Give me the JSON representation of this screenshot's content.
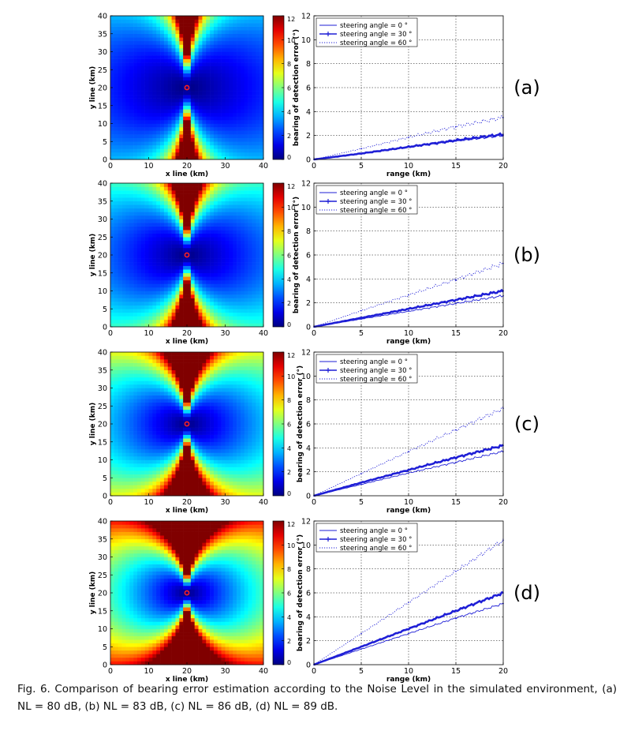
{
  "figure": {
    "caption": "Fig. 6. Comparison of bearing error estimation according to the Noise Level in the simulated environment, (a) NL = 80 dB, (b) NL = 83 dB, (c) NL = 86 dB, (d) NL = 89 dB."
  },
  "colors": {
    "series_line": "#1f1fd6",
    "source_marker": "#ff2020",
    "grid": "#000000"
  },
  "chart_data": [
    {
      "panel_label": "(a)",
      "heatmap": {
        "type": "heatmap",
        "xlabel": "x line (km)",
        "ylabel": "y line (km)",
        "xlim": [
          0,
          40
        ],
        "ylim": [
          0,
          40
        ],
        "xticks": [
          0,
          10,
          20,
          30,
          40
        ],
        "yticks": [
          0,
          5,
          10,
          15,
          20,
          25,
          30,
          35,
          40
        ],
        "source_point": [
          20,
          20
        ],
        "colorbar": {
          "label": "",
          "range": [
            0,
            12
          ],
          "ticks": [
            0,
            2,
            4,
            6,
            8,
            10,
            12
          ],
          "colormap": "jet"
        },
        "corner_level": 3.7
      },
      "line": {
        "type": "line",
        "xlabel": "range (km)",
        "ylabel": "bearing of detection error (°)",
        "xlim": [
          0,
          20
        ],
        "ylim": [
          0,
          12
        ],
        "xticks": [
          0,
          5,
          10,
          15,
          20
        ],
        "yticks": [
          0,
          2,
          4,
          6,
          8,
          10,
          12
        ],
        "grid": true,
        "legend": "top-left",
        "x": [
          0,
          5,
          10,
          15,
          20
        ],
        "series": [
          {
            "name": "steering angle = 0 °",
            "style": "solid",
            "values": [
              0,
              0.5,
              1.05,
              1.55,
              2.0
            ]
          },
          {
            "name": "steering angle = 30 °",
            "style": "solid-marker",
            "values": [
              0,
              0.5,
              1.05,
              1.6,
              2.1
            ]
          },
          {
            "name": "steering angle = 60 °",
            "style": "dotted",
            "values": [
              0,
              0.9,
              1.85,
              2.75,
              3.5
            ]
          }
        ]
      }
    },
    {
      "panel_label": "(b)",
      "heatmap": {
        "type": "heatmap",
        "xlabel": "x line (km)",
        "ylabel": "y line (km)",
        "xlim": [
          0,
          40
        ],
        "ylim": [
          0,
          40
        ],
        "xticks": [
          0,
          10,
          20,
          30,
          40
        ],
        "yticks": [
          0,
          5,
          10,
          15,
          20,
          25,
          30,
          35,
          40
        ],
        "source_point": [
          20,
          20
        ],
        "colorbar": {
          "label": "",
          "range": [
            0,
            12
          ],
          "ticks": [
            0,
            2,
            4,
            6,
            8,
            10,
            12
          ],
          "colormap": "jet"
        },
        "corner_level": 5.2
      },
      "line": {
        "type": "line",
        "xlabel": "range (km)",
        "ylabel": "bearing of detection error (°)",
        "xlim": [
          0,
          20
        ],
        "ylim": [
          0,
          12
        ],
        "xticks": [
          0,
          5,
          10,
          15,
          20
        ],
        "yticks": [
          0,
          2,
          4,
          6,
          8,
          10,
          12
        ],
        "grid": true,
        "legend": "top-left",
        "x": [
          0,
          5,
          10,
          15,
          20
        ],
        "series": [
          {
            "name": "steering angle = 0 °",
            "style": "solid",
            "values": [
              0,
              0.65,
              1.3,
              1.95,
              2.6
            ]
          },
          {
            "name": "steering angle = 30 °",
            "style": "solid-marker",
            "values": [
              0,
              0.75,
              1.5,
              2.25,
              3.0
            ]
          },
          {
            "name": "steering angle = 60 °",
            "style": "dotted",
            "values": [
              0,
              1.35,
              2.65,
              3.95,
              5.3
            ]
          }
        ]
      }
    },
    {
      "panel_label": "(c)",
      "heatmap": {
        "type": "heatmap",
        "xlabel": "x line (km)",
        "ylabel": "y line (km)",
        "xlim": [
          0,
          40
        ],
        "ylim": [
          0,
          40
        ],
        "xticks": [
          0,
          10,
          20,
          30,
          40
        ],
        "yticks": [
          0,
          5,
          10,
          15,
          20,
          25,
          30,
          35,
          40
        ],
        "source_point": [
          20,
          20
        ],
        "colorbar": {
          "label": "bearing of detection error (°)",
          "range": [
            0,
            12
          ],
          "ticks": [
            0,
            2,
            4,
            6,
            8,
            10,
            12
          ],
          "colormap": "jet"
        },
        "corner_level": 7.3
      },
      "line": {
        "type": "line",
        "xlabel": "range (km)",
        "ylabel": "",
        "xlim": [
          0,
          20
        ],
        "ylim": [
          0,
          12
        ],
        "xticks": [
          0,
          5,
          10,
          15,
          20
        ],
        "yticks": [
          0,
          2,
          4,
          6,
          8,
          10,
          12
        ],
        "grid": true,
        "legend": "top-left",
        "x": [
          0,
          5,
          10,
          15,
          20
        ],
        "series": [
          {
            "name": "steering angle = 0 °",
            "style": "solid",
            "values": [
              0,
              0.95,
              1.9,
              2.8,
              3.7
            ]
          },
          {
            "name": "steering angle = 30 °",
            "style": "solid-marker",
            "values": [
              0,
              1.1,
              2.15,
              3.2,
              4.2
            ]
          },
          {
            "name": "steering angle = 60 °",
            "style": "dotted",
            "values": [
              0,
              1.85,
              3.7,
              5.5,
              7.3
            ]
          }
        ]
      }
    },
    {
      "panel_label": "(d)",
      "heatmap": {
        "type": "heatmap",
        "xlabel": "x line (km)",
        "ylabel": "y line (km)",
        "xlim": [
          0,
          40
        ],
        "ylim": [
          0,
          40
        ],
        "xticks": [
          0,
          10,
          20,
          30,
          40
        ],
        "yticks": [
          0,
          5,
          10,
          15,
          20,
          25,
          30,
          35,
          40
        ],
        "source_point": [
          20,
          20
        ],
        "colorbar": {
          "label": "bearing of detection error (°)",
          "range": [
            0,
            12
          ],
          "ticks": [
            0,
            2,
            4,
            6,
            8,
            10,
            12
          ],
          "colormap": "jet"
        },
        "corner_level": 10.4
      },
      "line": {
        "type": "line",
        "xlabel": "range (km)",
        "ylabel": "",
        "xlim": [
          0,
          20
        ],
        "ylim": [
          0,
          12
        ],
        "xticks": [
          0,
          5,
          10,
          15,
          20
        ],
        "yticks": [
          0,
          2,
          4,
          6,
          8,
          10,
          12
        ],
        "grid": true,
        "legend": "top-left",
        "x": [
          0,
          5,
          10,
          15,
          20
        ],
        "series": [
          {
            "name": "steering angle = 0 °",
            "style": "solid",
            "values": [
              0,
              1.3,
              2.6,
              3.9,
              5.1
            ]
          },
          {
            "name": "steering angle = 30 °",
            "style": "solid-marker",
            "values": [
              0,
              1.5,
              3.0,
              4.5,
              6.0
            ]
          },
          {
            "name": "steering angle = 60 °",
            "style": "dotted",
            "values": [
              0,
              2.6,
              5.2,
              7.8,
              10.4
            ]
          }
        ]
      }
    }
  ]
}
